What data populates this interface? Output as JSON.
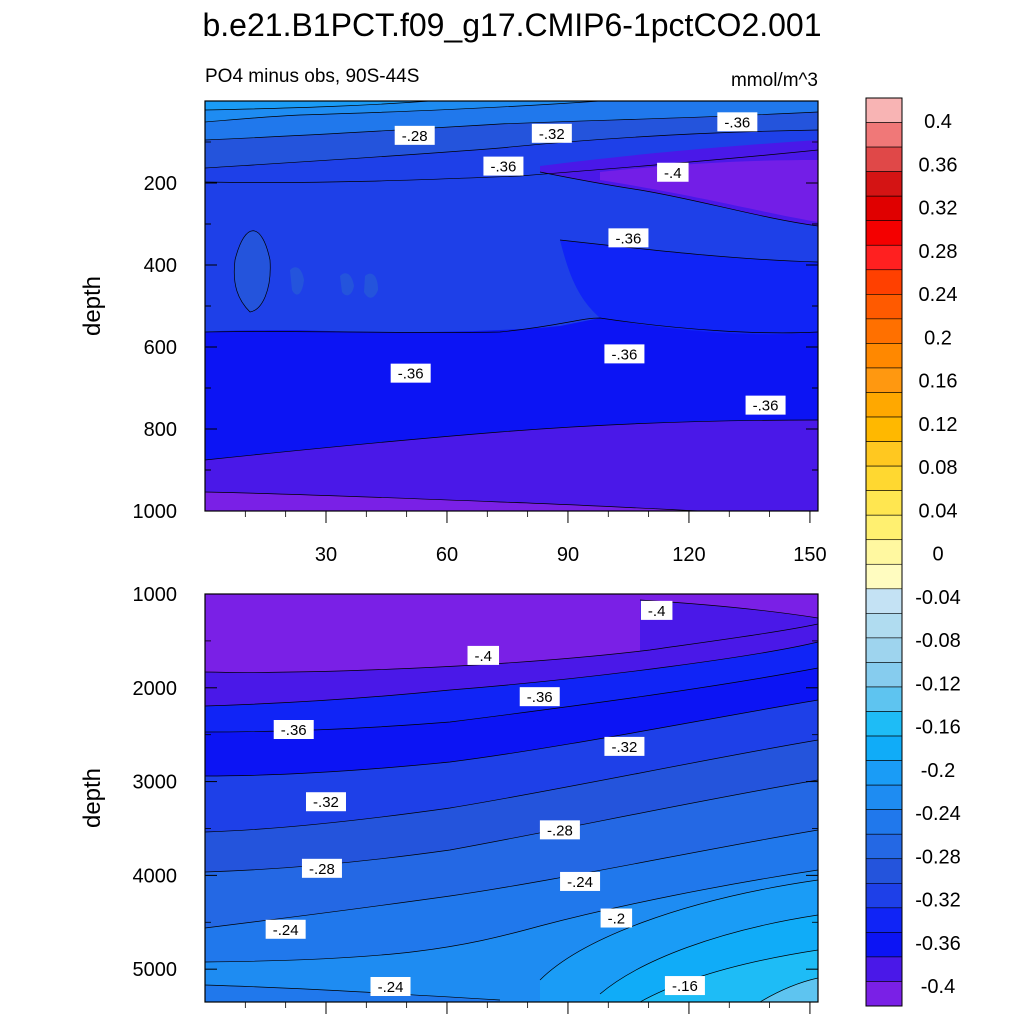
{
  "title": "b.e21.B1PCT.f09_g17.CMIP6-1pctCO2.001",
  "subtitle_left": "PO4 minus obs, 90S-44S",
  "subtitle_right": "mmol/m^3",
  "chart_data": [
    {
      "type": "contour",
      "panel": "upper ocean",
      "ylabel": "depth",
      "xlim": [
        0,
        152
      ],
      "ylim": [
        1000,
        0
      ],
      "yticks": [
        200,
        400,
        600,
        800,
        1000
      ],
      "xticks": [
        30,
        60,
        90,
        120,
        150
      ],
      "contour_labels": [
        {
          "text": "-.28",
          "x": 52,
          "y": 85
        },
        {
          "text": "-.32",
          "x": 86,
          "y": 80
        },
        {
          "text": "-.36",
          "x": 132,
          "y": 52
        },
        {
          "text": "-.36",
          "x": 74,
          "y": 160
        },
        {
          "text": "-.4",
          "x": 116,
          "y": 175
        },
        {
          "text": "-.36",
          "x": 105,
          "y": 335
        },
        {
          "text": "-.36",
          "x": 51,
          "y": 665
        },
        {
          "text": "-.36",
          "x": 104,
          "y": 618
        },
        {
          "text": "-.36",
          "x": 139,
          "y": 743
        }
      ]
    },
    {
      "type": "contour",
      "panel": "deep ocean",
      "ylabel": "depth",
      "xlim": [
        0,
        152
      ],
      "ylim": [
        5350,
        1000
      ],
      "yticks": [
        1000,
        2000,
        3000,
        4000,
        5000
      ],
      "contour_labels": [
        {
          "text": "-.4",
          "x": 112,
          "y": 1180
        },
        {
          "text": "-.4",
          "x": 69,
          "y": 1660
        },
        {
          "text": "-.36",
          "x": 83,
          "y": 2100
        },
        {
          "text": "-.36",
          "x": 22,
          "y": 2450
        },
        {
          "text": "-.32",
          "x": 104,
          "y": 2630
        },
        {
          "text": "-.32",
          "x": 30,
          "y": 3220
        },
        {
          "text": "-.28",
          "x": 88,
          "y": 3520
        },
        {
          "text": "-.28",
          "x": 29,
          "y": 3930
        },
        {
          "text": "-.24",
          "x": 93,
          "y": 4070
        },
        {
          "text": "-.2",
          "x": 102,
          "y": 4460
        },
        {
          "text": "-.24",
          "x": 20,
          "y": 4580
        },
        {
          "text": "-.24",
          "x": 46,
          "y": 5190
        },
        {
          "text": "-.16",
          "x": 119,
          "y": 5180
        }
      ]
    }
  ],
  "colorbar": {
    "labels": [
      "0.4",
      "0.36",
      "0.32",
      "0.28",
      "0.24",
      "0.2",
      "0.16",
      "0.12",
      "0.08",
      "0.04",
      "0",
      "-0.04",
      "-0.08",
      "-0.12",
      "-0.16",
      "-0.2",
      "-0.24",
      "-0.28",
      "-0.32",
      "-0.36",
      "-0.4"
    ],
    "colors": [
      "#f8b4b4",
      "#f07878",
      "#e04848",
      "#d41414",
      "#e00000",
      "#f40000",
      "#ff2020",
      "#ff4000",
      "#ff5a00",
      "#ff7000",
      "#ff8800",
      "#ff9810",
      "#ffa800",
      "#ffb800",
      "#ffc820",
      "#ffd830",
      "#ffe650",
      "#fff070",
      "#fff8a0",
      "#fffcc0",
      "#c4e2f4",
      "#b0dcf0",
      "#9ed4ee",
      "#86ccee",
      "#5ec4f0",
      "#1ebcf6",
      "#10acf8",
      "#1a9cf6",
      "#1e8cf2",
      "#2078ec",
      "#2468e4",
      "#2454dc",
      "#1e40e8",
      "#1024f6",
      "#0c14f4",
      "#4a18e8",
      "#7a20e6"
    ]
  }
}
